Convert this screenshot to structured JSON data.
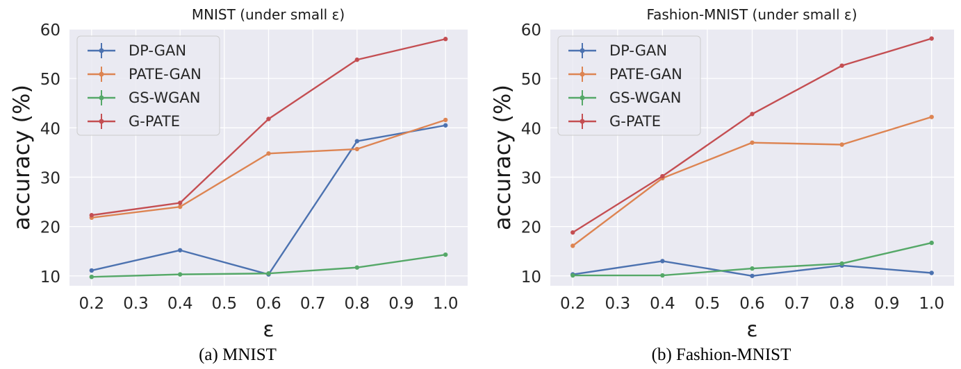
{
  "figure": {
    "captions": [
      "(a) MNIST",
      "(b) Fashion-MNIST"
    ]
  },
  "colors": {
    "DP-GAN": "#4c72b0",
    "PATE-GAN": "#dd8452",
    "GS-WGAN": "#55a868",
    "G-PATE": "#c44e52",
    "plot_bg": "#eaeaf2",
    "grid": "#ffffff"
  },
  "chart_data": [
    {
      "type": "line",
      "title": "MNIST (under small ε)",
      "xlabel": "ε",
      "ylabel": "accuracy (%)",
      "x": [
        0.2,
        0.4,
        0.6,
        0.8,
        1.0
      ],
      "xlim": [
        0.15,
        1.05
      ],
      "ylim": [
        8,
        60
      ],
      "xticks": [
        "0.2",
        "0.3",
        "0.4",
        "0.5",
        "0.6",
        "0.7",
        "0.8",
        "0.9",
        "1.0"
      ],
      "yticks": [
        "10",
        "20",
        "30",
        "40",
        "50",
        "60"
      ],
      "grid": true,
      "legend": "top-left",
      "series": [
        {
          "name": "DP-GAN",
          "values": [
            11.1,
            15.2,
            10.3,
            37.3,
            40.5
          ]
        },
        {
          "name": "PATE-GAN",
          "values": [
            21.8,
            24.0,
            34.8,
            35.7,
            41.6
          ]
        },
        {
          "name": "GS-WGAN",
          "values": [
            9.8,
            10.3,
            10.5,
            11.7,
            14.3
          ]
        },
        {
          "name": "G-PATE",
          "values": [
            22.3,
            24.8,
            41.8,
            53.8,
            58.0
          ]
        }
      ]
    },
    {
      "type": "line",
      "title": "Fashion-MNIST (under small ε)",
      "xlabel": "ε",
      "ylabel": "accuracy (%)",
      "x": [
        0.2,
        0.4,
        0.6,
        0.8,
        1.0
      ],
      "xlim": [
        0.15,
        1.05
      ],
      "ylim": [
        8,
        60
      ],
      "xticks": [
        "0.2",
        "0.3",
        "0.4",
        "0.5",
        "0.6",
        "0.7",
        "0.8",
        "0.9",
        "1.0"
      ],
      "yticks": [
        "10",
        "20",
        "30",
        "40",
        "50",
        "60"
      ],
      "grid": true,
      "legend": "top-left",
      "series": [
        {
          "name": "DP-GAN",
          "values": [
            10.3,
            13.0,
            10.0,
            12.1,
            10.6
          ]
        },
        {
          "name": "PATE-GAN",
          "values": [
            16.1,
            29.8,
            37.0,
            36.6,
            42.2
          ]
        },
        {
          "name": "GS-WGAN",
          "values": [
            10.1,
            10.1,
            11.5,
            12.5,
            16.7
          ]
        },
        {
          "name": "G-PATE",
          "values": [
            18.8,
            30.2,
            42.8,
            52.6,
            58.1
          ]
        }
      ]
    }
  ]
}
